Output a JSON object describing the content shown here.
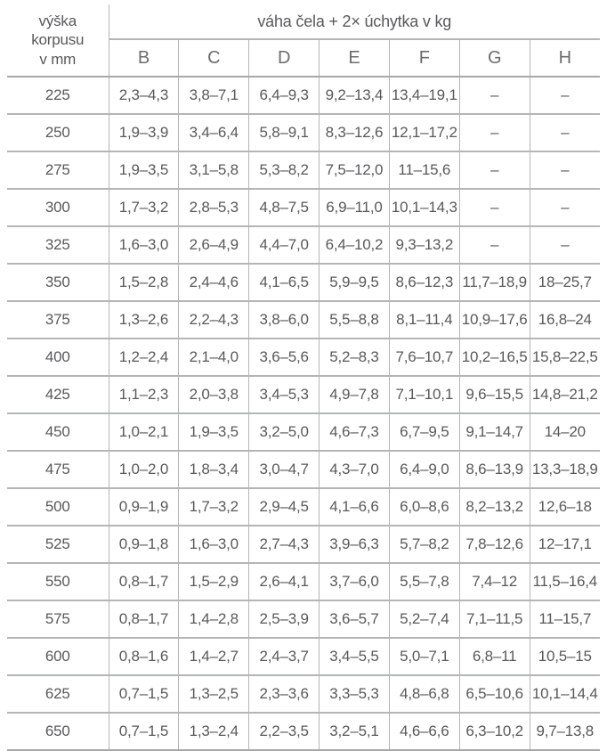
{
  "table": {
    "corner_header": "výška\nkorpusu\nv mm",
    "group_header": "váha čela + 2× úchytka v kg",
    "columns": [
      "B",
      "C",
      "D",
      "E",
      "F",
      "G",
      "H"
    ],
    "empty_marker": "–",
    "rows": [
      {
        "height": "225",
        "values": [
          "2,3–4,3",
          "3,8–7,1",
          "6,4–9,3",
          "9,2–13,4",
          "13,4–19,1",
          "–",
          "–"
        ]
      },
      {
        "height": "250",
        "values": [
          "1,9–3,9",
          "3,4–6,4",
          "5,8–9,1",
          "8,3–12,6",
          "12,1–17,2",
          "–",
          "–"
        ]
      },
      {
        "height": "275",
        "values": [
          "1,9–3,5",
          "3,1–5,8",
          "5,3–8,2",
          "7,5–12,0",
          "11–15,6",
          "–",
          "–"
        ]
      },
      {
        "height": "300",
        "values": [
          "1,7–3,2",
          "2,8–5,3",
          "4,8–7,5",
          "6,9–11,0",
          "10,1–14,3",
          "–",
          "–"
        ]
      },
      {
        "height": "325",
        "values": [
          "1,6–3,0",
          "2,6–4,9",
          "4,4–7,0",
          "6,4–10,2",
          "9,3–13,2",
          "–",
          "–"
        ]
      },
      {
        "height": "350",
        "values": [
          "1,5–2,8",
          "2,4–4,6",
          "4,1–6,5",
          "5,9–9,5",
          "8,6–12,3",
          "11,7–18,9",
          "18–25,7"
        ]
      },
      {
        "height": "375",
        "values": [
          "1,3–2,6",
          "2,2–4,3",
          "3,8–6,0",
          "5,5–8,8",
          "8,1–11,4",
          "10,9–17,6",
          "16,8–24"
        ]
      },
      {
        "height": "400",
        "values": [
          "1,2–2,4",
          "2,1–4,0",
          "3,6–5,6",
          "5,2–8,3",
          "7,6–10,7",
          "10,2–16,5",
          "15,8–22,5"
        ]
      },
      {
        "height": "425",
        "values": [
          "1,1–2,3",
          "2,0–3,8",
          "3,4–5,3",
          "4,9–7,8",
          "7,1–10,1",
          "9,6–15,5",
          "14,8–21,2"
        ]
      },
      {
        "height": "450",
        "values": [
          "1,0–2,1",
          "1,9–3,5",
          "3,2–5,0",
          "4,6–7,3",
          "6,7–9,5",
          "9,1–14,7",
          "14–20"
        ]
      },
      {
        "height": "475",
        "values": [
          "1,0–2,0",
          "1,8–3,4",
          "3,0–4,7",
          "4,3–7,0",
          "6,4–9,0",
          "8,6–13,9",
          "13,3–18,9"
        ]
      },
      {
        "height": "500",
        "values": [
          "0,9–1,9",
          "1,7–3,2",
          "2,9–4,5",
          "4,1–6,6",
          "6,0–8,6",
          "8,2–13,2",
          "12,6–18"
        ]
      },
      {
        "height": "525",
        "values": [
          "0,9–1,8",
          "1,6–3,0",
          "2,7–4,3",
          "3,9–6,3",
          "5,7–8,2",
          "7,8–12,6",
          "12–17,1"
        ]
      },
      {
        "height": "550",
        "values": [
          "0,8–1,7",
          "1,5–2,9",
          "2,6–4,1",
          "3,7–6,0",
          "5,5–7,8",
          "7,4–12",
          "11,5–16,4"
        ]
      },
      {
        "height": "575",
        "values": [
          "0,8–1,7",
          "1,4–2,8",
          "2,5–3,9",
          "3,6–5,7",
          "5,2–7,4",
          "7,1–11,5",
          "11–15,7"
        ]
      },
      {
        "height": "600",
        "values": [
          "0,8–1,6",
          "1,4–2,7",
          "2,4–3,7",
          "3,4–5,5",
          "5,0–7,1",
          "6,8–11",
          "10,5–15"
        ]
      },
      {
        "height": "625",
        "values": [
          "0,7–1,5",
          "1,3–2,5",
          "2,3–3,6",
          "3,3–5,3",
          "4,8–6,8",
          "6,5–10,6",
          "10,1–14,4"
        ]
      },
      {
        "height": "650",
        "values": [
          "0,7–1,5",
          "1,3–2,4",
          "2,2–3,5",
          "3,2–5,1",
          "4,6–6,6",
          "6,3–10,2",
          "9,7–13,8"
        ]
      }
    ]
  },
  "colors": {
    "text": "#58595b",
    "grid_line": "#b3b5b7",
    "background": "#ffffff"
  }
}
